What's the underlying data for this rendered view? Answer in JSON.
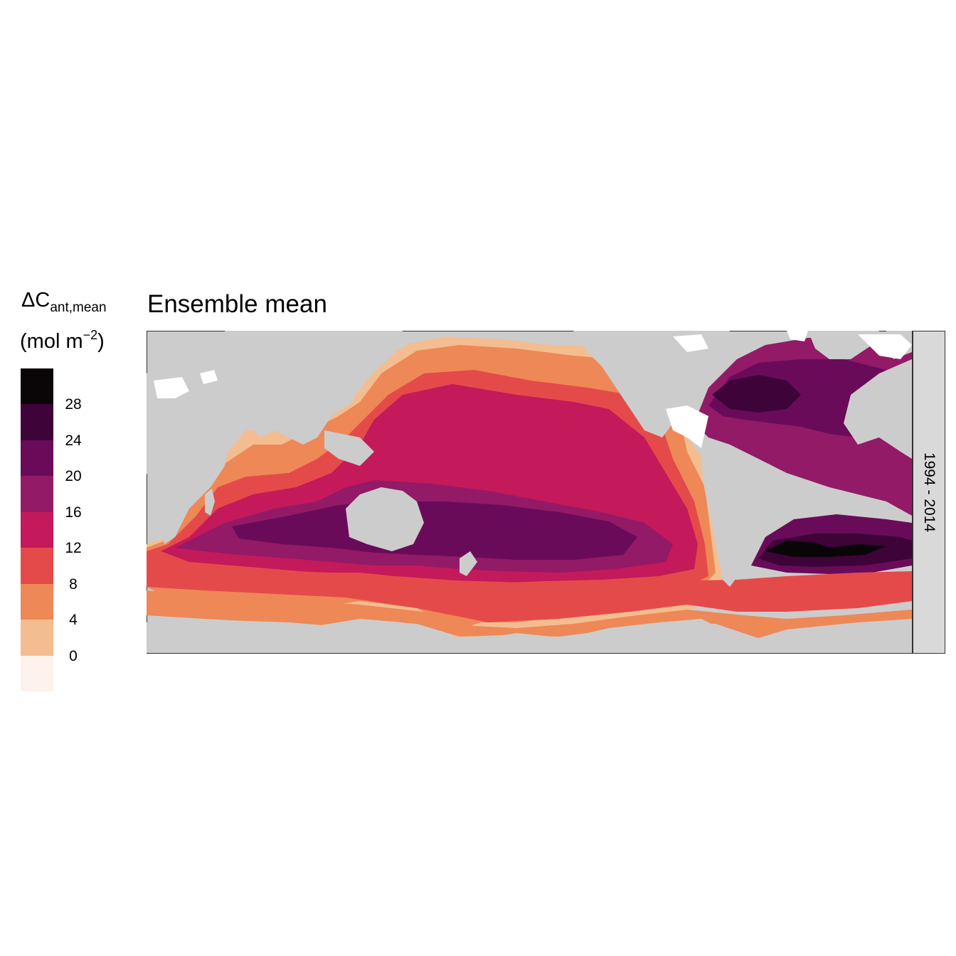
{
  "title": "Ensemble mean",
  "legend": {
    "title_main": "ΔC",
    "title_sub": "ant,mean",
    "unit_prefix": "(mol m",
    "unit_exp": "−2",
    "unit_suffix": ")",
    "bins": [
      {
        "min": null,
        "max": 0,
        "color": "#fdf3ec"
      },
      {
        "min": 0,
        "max": 4,
        "color": "#f3bd8f"
      },
      {
        "min": 4,
        "max": 8,
        "color": "#ee8857"
      },
      {
        "min": 8,
        "max": 12,
        "color": "#e54a4a"
      },
      {
        "min": 12,
        "max": 16,
        "color": "#c4195a"
      },
      {
        "min": 16,
        "max": 20,
        "color": "#931a67"
      },
      {
        "min": 20,
        "max": 24,
        "color": "#6a0b5a"
      },
      {
        "min": 24,
        "max": 28,
        "color": "#3e0338"
      },
      {
        "min": 28,
        "max": null,
        "color": "#0a0608"
      }
    ],
    "ticks": [
      "0",
      "4",
      "8",
      "12",
      "16",
      "20",
      "24",
      "28"
    ]
  },
  "facet_label": "1994 - 2014",
  "map": {
    "land_color": "#cccccc",
    "missing_color": "#ffffff",
    "border_color": "#333333"
  }
}
